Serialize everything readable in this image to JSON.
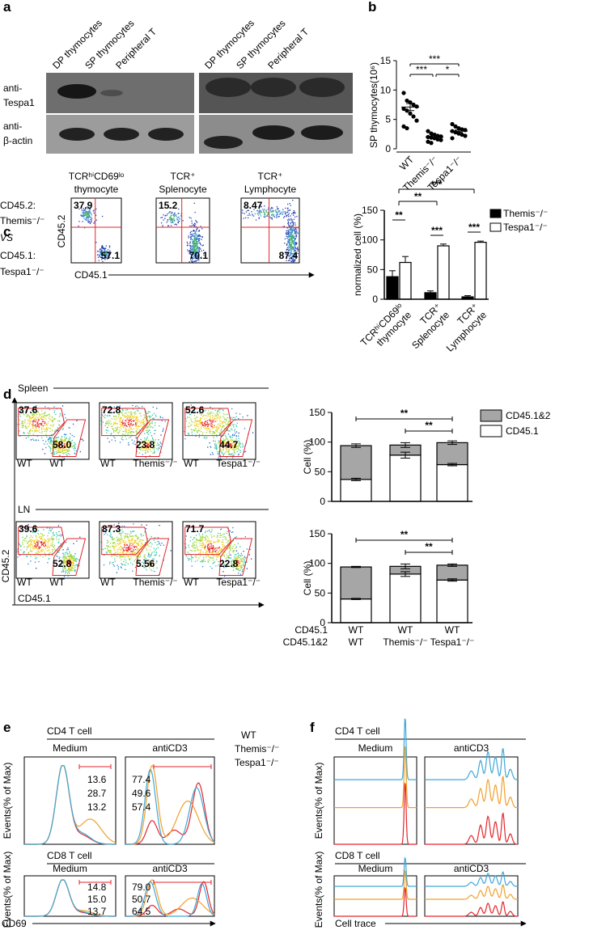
{
  "figure": {
    "panel_labels": [
      "a",
      "b",
      "c",
      "d",
      "e",
      "f"
    ],
    "a": {
      "columns": [
        "DP thymocytes",
        "SP thymocytes",
        "Peripheral T",
        "DP thymocytes",
        "SP thymocytes",
        "Peripheral T"
      ],
      "rows": [
        [
          "anti-",
          "Tespa1"
        ],
        [
          "anti-",
          "β-actin"
        ]
      ]
    },
    "c": {
      "side_labels": [
        "CD45.2:",
        "Themis⁻/⁻",
        "VS",
        "CD45.1:",
        "Tespa1⁻/⁻"
      ],
      "plots": [
        {
          "title": [
            "TCRʰⁱCD69ˡᵒ",
            "thymocyte"
          ],
          "upper": "37.9",
          "lower": "57.1"
        },
        {
          "title": [
            "TCR⁺",
            "Splenocyte"
          ],
          "upper": "15.2",
          "lower": "70.1"
        },
        {
          "title": [
            "TCR⁺",
            "Lymphocyte"
          ],
          "upper": "8.47",
          "lower": "87.4"
        }
      ],
      "y_axis": "CD45.2",
      "x_axis": "CD45.1"
    },
    "d": {
      "sections": [
        {
          "name": "Spleen",
          "plots": [
            {
              "upper": "37.6",
              "lower": "58.0",
              "left": "WT",
              "right": "WT"
            },
            {
              "upper": "72.8",
              "lower": "23.8",
              "left": "WT",
              "right": "Themis⁻/⁻"
            },
            {
              "upper": "52.6",
              "lower": "44.7",
              "left": "WT",
              "right": "Tespa1⁻/⁻"
            }
          ]
        },
        {
          "name": "LN",
          "plots": [
            {
              "upper": "39.6",
              "lower": "52.8",
              "left": "WT",
              "right": "WT"
            },
            {
              "upper": "87.3",
              "lower": "5.56",
              "left": "WT",
              "right": "Themis⁻/⁻"
            },
            {
              "upper": "71.7",
              "lower": "22.8",
              "left": "WT",
              "right": "Tespa1⁻/⁻"
            }
          ]
        }
      ],
      "y_axis": "CD45.2",
      "x_axis": "CD45.1"
    },
    "e": {
      "legend": [
        {
          "name": "WT",
          "color": "#e3262d"
        },
        {
          "name": "Themis⁻/⁻",
          "color": "#f0a02c"
        },
        {
          "name": "Tespa1⁻/⁻",
          "color": "#3ea8d8"
        }
      ],
      "sections": [
        {
          "name": "CD4 T cell",
          "conditions": [
            "Medium",
            "antiCD3"
          ],
          "values": [
            [
              "13.6",
              "28.7",
              "13.2"
            ],
            [
              "77.4",
              "49.6",
              "57.4"
            ]
          ]
        },
        {
          "name": "CD8 T cell",
          "conditions": [
            "Medium",
            "antiCD3"
          ],
          "values": [
            [
              "14.8",
              "15.0",
              "13.7"
            ],
            [
              "79.0",
              "50.7",
              "64.5"
            ]
          ]
        }
      ],
      "y_axis": "Events(% of Max)",
      "x_axis": "CD69"
    },
    "f": {
      "sections": [
        {
          "name": "CD4 T cell",
          "conditions": [
            "Medium",
            "antiCD3"
          ]
        },
        {
          "name": "CD8 T cell",
          "conditions": [
            "Medium",
            "antiCD3"
          ]
        }
      ],
      "y_axis": "Events(% of Max)",
      "x_axis": "Cell trace"
    }
  },
  "chart_data": [
    {
      "type": "dot",
      "ylabel": "SP thymocytes(10⁶)",
      "categories": [
        "WT",
        "Themis⁻/⁻",
        "Tespa1⁻/⁻"
      ],
      "values": [
        [
          9.5,
          8.2,
          7.9,
          7.5,
          7.2,
          6.8,
          6.5,
          6.0,
          5.5,
          4.8,
          3.8,
          3.5
        ],
        [
          3.0,
          2.6,
          2.4,
          2.2,
          2.1,
          2.0,
          1.9,
          1.8,
          1.6,
          1.5,
          1.2,
          1.0
        ],
        [
          4.2,
          3.8,
          3.5,
          3.3,
          3.2,
          3.0,
          2.8,
          2.6,
          2.4,
          2.2,
          1.8
        ]
      ],
      "means": [
        7.1,
        2.0,
        3.0
      ],
      "errors": [
        0.6,
        0.2,
        0.2
      ],
      "ylim": [
        0,
        15
      ],
      "yticks": [
        0,
        5,
        10,
        15
      ],
      "significance": [
        "***",
        "***",
        "*"
      ]
    },
    {
      "type": "bar",
      "ylabel": "normalized cell (%)",
      "categories": [
        [
          "TCRʰⁱCD69ˡᵒ",
          "thymocyte"
        ],
        [
          "TCR⁺",
          "Splenocyte"
        ],
        [
          "TCR⁺",
          "Lymphocyte"
        ]
      ],
      "series": [
        {
          "name": "Themis⁻/⁻",
          "color": "#000000",
          "values": [
            38,
            11,
            4
          ],
          "errors": [
            10,
            3,
            2
          ]
        },
        {
          "name": "Tespa1⁻/⁻",
          "color": "#ffffff",
          "values": [
            62,
            90,
            96
          ],
          "errors": [
            10,
            3,
            2
          ]
        }
      ],
      "ylim": [
        0,
        150
      ],
      "yticks": [
        0,
        50,
        100,
        150
      ],
      "significance": [
        "***",
        "**",
        "**",
        "***",
        "***"
      ]
    },
    {
      "type": "stacked_bar",
      "ylabel": "Cell (%)",
      "series": [
        {
          "name": "CD45.1",
          "color": "#ffffff",
          "values": [
            37,
            78,
            62
          ],
          "errors": [
            2,
            5,
            2
          ]
        },
        {
          "name": "CD45.1&2",
          "color": "#a6a6a6",
          "values": [
            57,
            17,
            37
          ],
          "errors": [
            3,
            4,
            3
          ]
        }
      ],
      "ylim": [
        0,
        150
      ],
      "yticks": [
        0,
        50,
        100,
        150
      ],
      "significance": [
        "**",
        "**"
      ]
    },
    {
      "type": "stacked_bar",
      "ylabel": "Cell (%)",
      "row_labels": [
        "CD45.1",
        "CD45.1&2"
      ],
      "categories": [
        "WT",
        "WT",
        "WT"
      ],
      "categories2": [
        "WT",
        "Themis⁻/⁻",
        "Tespa1⁻/⁻"
      ],
      "series": [
        {
          "color": "#ffffff",
          "values": [
            40,
            82,
            72
          ],
          "errors": [
            1,
            4,
            2
          ]
        },
        {
          "color": "#a6a6a6",
          "values": [
            54,
            13,
            25
          ],
          "errors": [
            1,
            4,
            2
          ]
        }
      ],
      "ylim": [
        0,
        150
      ],
      "yticks": [
        0,
        50,
        100,
        150
      ],
      "significance": [
        "**",
        "**"
      ]
    }
  ]
}
